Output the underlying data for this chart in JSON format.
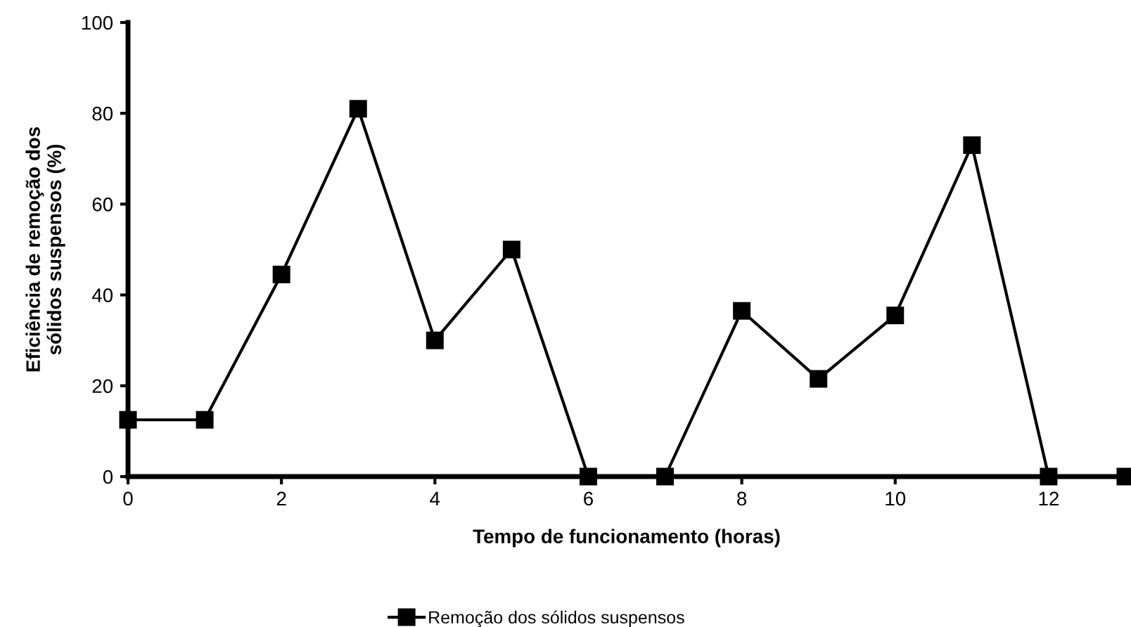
{
  "chart_data": {
    "type": "line",
    "xlabel": "Tempo de funcionamento (horas)",
    "ylabel": "Eficiência de remoção dos\nsólidos suspensos (%)",
    "x": [
      0,
      1,
      2,
      3,
      4,
      5,
      6,
      7,
      8,
      9,
      10,
      11,
      12,
      13
    ],
    "series": [
      {
        "name": "Remoção dos sólidos suspensos",
        "color": "#000000",
        "values": [
          12.5,
          12.5,
          44.5,
          81,
          30,
          50,
          0,
          0,
          36.5,
          21.5,
          35.5,
          73,
          0,
          0
        ]
      }
    ],
    "xlim": [
      0,
      13
    ],
    "xticks": [
      0,
      2,
      4,
      6,
      8,
      10,
      12
    ],
    "ylim": [
      0,
      100
    ],
    "yticks": [
      0,
      20,
      40,
      60,
      80,
      100
    ],
    "marker": "square",
    "line_style": "solid",
    "grid": false,
    "legend": "bottom"
  }
}
